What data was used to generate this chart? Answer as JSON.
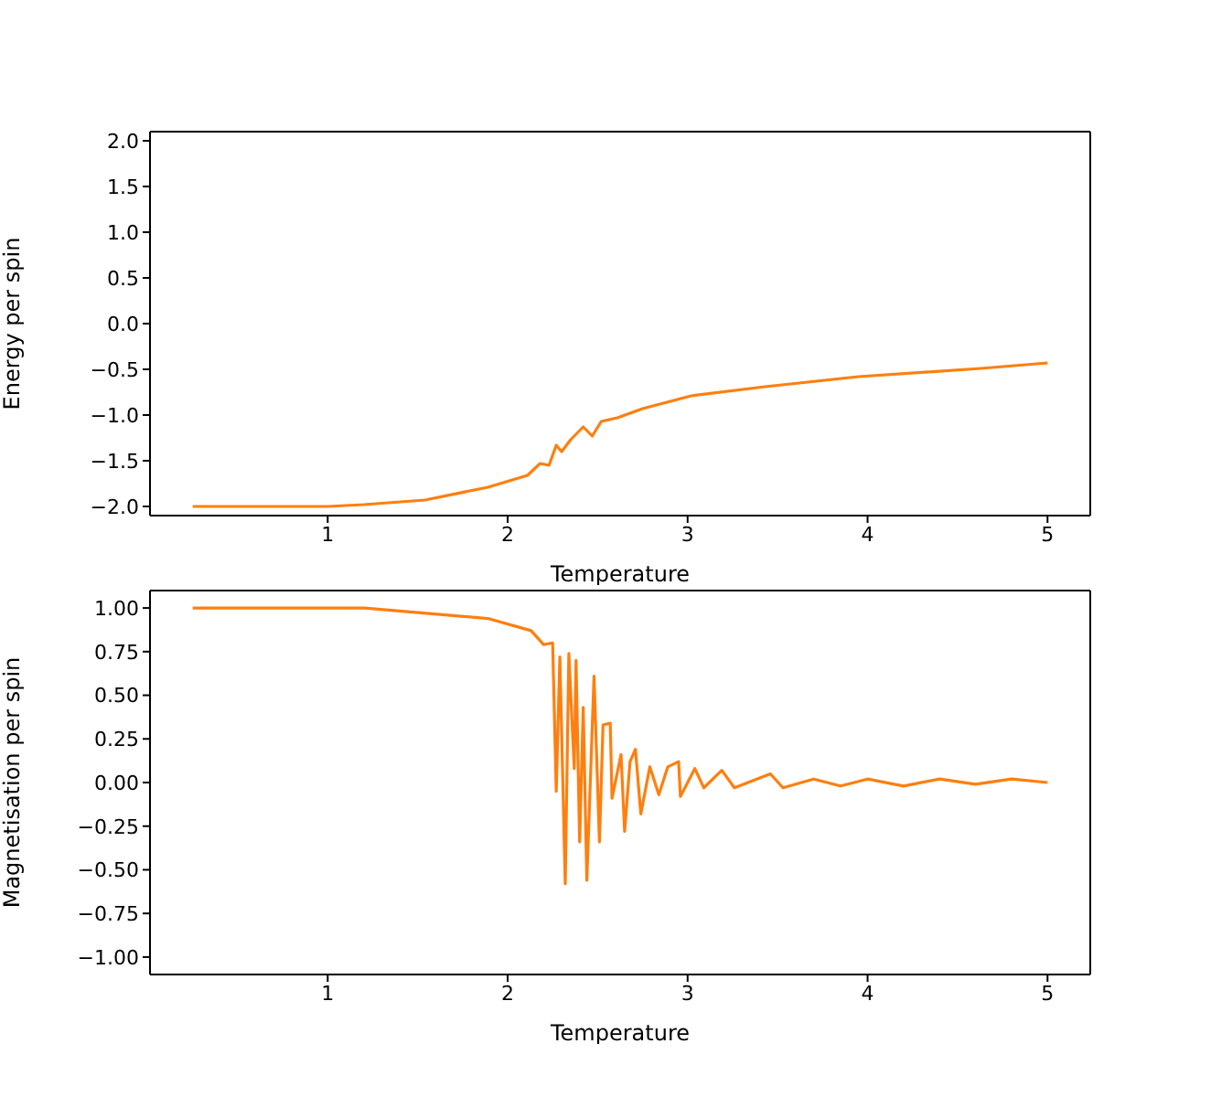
{
  "chart_data": [
    {
      "type": "line",
      "xlabel": "Temperature",
      "ylabel": "Energy per spin",
      "xlim": [
        0.0125,
        5.2375
      ],
      "ylim": [
        -2.1,
        2.1
      ],
      "xticks": [
        1,
        2,
        3,
        4,
        5
      ],
      "yticks": [
        {
          "value": -2,
          "label": "−2.0"
        },
        {
          "value": -1.5,
          "label": "−1.5"
        },
        {
          "value": -1,
          "label": "−1.0"
        },
        {
          "value": -0.5,
          "label": "−0.5"
        },
        {
          "value": 0,
          "label": "0.0"
        },
        {
          "value": 0.5,
          "label": "0.5"
        },
        {
          "value": 1,
          "label": "1.0"
        },
        {
          "value": 1.5,
          "label": "1.5"
        },
        {
          "value": 2,
          "label": "2.0"
        }
      ],
      "grid": false,
      "x": [
        0.25,
        0.6,
        1.0,
        1.2,
        1.54,
        1.89,
        2.11,
        2.18,
        2.23,
        2.27,
        2.3,
        2.35,
        2.42,
        2.47,
        2.52,
        2.61,
        2.75,
        3.02,
        3.43,
        3.95,
        4.63,
        5.0
      ],
      "series": [
        {
          "color": "#ff7f0e",
          "values": [
            -2.0,
            -2.0,
            -2.0,
            -1.98,
            -1.93,
            -1.79,
            -1.66,
            -1.53,
            -1.55,
            -1.33,
            -1.4,
            -1.27,
            -1.13,
            -1.23,
            -1.07,
            -1.03,
            -0.93,
            -0.79,
            -0.69,
            -0.58,
            -0.49,
            -0.43
          ]
        }
      ]
    },
    {
      "type": "line",
      "xlabel": "Temperature",
      "ylabel": "Magnetisation per spin",
      "xlim": [
        0.0125,
        5.2375
      ],
      "ylim": [
        -1.1,
        1.1
      ],
      "xticks": [
        1,
        2,
        3,
        4,
        5
      ],
      "yticks": [
        {
          "value": -1,
          "label": "−1.00"
        },
        {
          "value": -0.75,
          "label": "−0.75"
        },
        {
          "value": -0.5,
          "label": "−0.50"
        },
        {
          "value": -0.25,
          "label": "−0.25"
        },
        {
          "value": 0,
          "label": "0.00"
        },
        {
          "value": 0.25,
          "label": "0.25"
        },
        {
          "value": 0.5,
          "label": "0.50"
        },
        {
          "value": 0.75,
          "label": "0.75"
        },
        {
          "value": 1,
          "label": "1.00"
        }
      ],
      "grid": false,
      "x": [
        0.25,
        0.6,
        1.0,
        1.205,
        1.89,
        2.13,
        2.2,
        2.25,
        2.27,
        2.29,
        2.32,
        2.34,
        2.37,
        2.38,
        2.4,
        2.42,
        2.44,
        2.48,
        2.51,
        2.53,
        2.57,
        2.58,
        2.63,
        2.65,
        2.68,
        2.71,
        2.74,
        2.79,
        2.84,
        2.89,
        2.95,
        2.96,
        3.04,
        3.09,
        3.19,
        3.26,
        3.46,
        3.53,
        3.7,
        3.85,
        4.0,
        4.2,
        4.4,
        4.6,
        4.8,
        5.0
      ],
      "series": [
        {
          "color": "#ff7f0e",
          "values": [
            1.0,
            1.0,
            1.0,
            1.0,
            0.94,
            0.87,
            0.79,
            0.8,
            -0.05,
            0.72,
            -0.58,
            0.74,
            0.08,
            0.7,
            -0.34,
            0.43,
            -0.56,
            0.61,
            -0.34,
            0.33,
            0.34,
            -0.09,
            0.16,
            -0.28,
            0.12,
            0.19,
            -0.18,
            0.09,
            -0.07,
            0.09,
            0.12,
            -0.08,
            0.08,
            -0.03,
            0.07,
            -0.03,
            0.05,
            -0.03,
            0.02,
            -0.02,
            0.02,
            -0.02,
            0.02,
            -0.01,
            0.02,
            0.0
          ]
        }
      ]
    }
  ]
}
